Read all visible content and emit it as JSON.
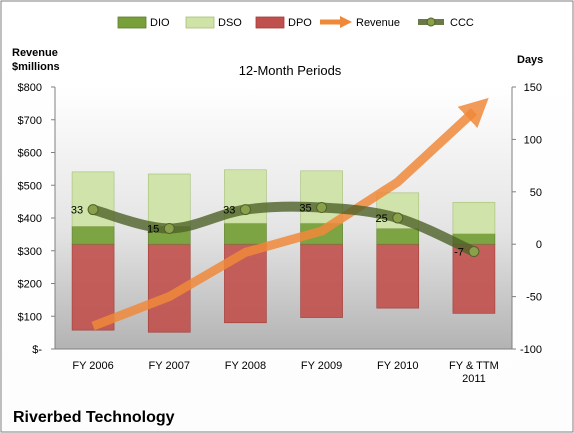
{
  "chart_data": {
    "type": "bar",
    "title": "12-Month Periods",
    "company": "Riverbed Technology",
    "left_axis_label": [
      "Revenue",
      "$millions"
    ],
    "right_axis_label": "Days",
    "left_ylim": [
      0,
      800
    ],
    "right_ylim": [
      -100,
      150
    ],
    "left_ticks": [
      "$-",
      "$100",
      "$200",
      "$300",
      "$400",
      "$500",
      "$600",
      "$700",
      "$800"
    ],
    "right_ticks": [
      "-100",
      "-50",
      "0",
      "50",
      "100",
      "150"
    ],
    "categories": [
      "FY 2006",
      "FY 2007",
      "FY 2008",
      "FY 2009",
      "FY 2010",
      "FY & TTM 2011"
    ],
    "legend_position": "top",
    "grid": false,
    "series": [
      {
        "name": "DIO",
        "type": "stacked-bar",
        "axis": "right",
        "color": "#77a03a",
        "values": [
          17,
          17,
          20,
          20,
          15,
          10
        ]
      },
      {
        "name": "DSO",
        "type": "stacked-bar",
        "axis": "right",
        "color": "#cfe3a6",
        "values": [
          52,
          50,
          51,
          50,
          34,
          30
        ]
      },
      {
        "name": "DPO",
        "type": "bar-below-zero",
        "axis": "right",
        "color": "#c0504d",
        "values": [
          82,
          84,
          75,
          70,
          61,
          66
        ]
      },
      {
        "name": "Revenue",
        "type": "arrow-line",
        "axis": "left",
        "color": "#f0883a",
        "values": [
          70,
          160,
          295,
          360,
          510,
          725
        ]
      },
      {
        "name": "CCC",
        "type": "line",
        "axis": "right",
        "color": "#4f6228",
        "values": [
          33,
          15,
          33,
          35,
          25,
          -7
        ]
      }
    ]
  }
}
